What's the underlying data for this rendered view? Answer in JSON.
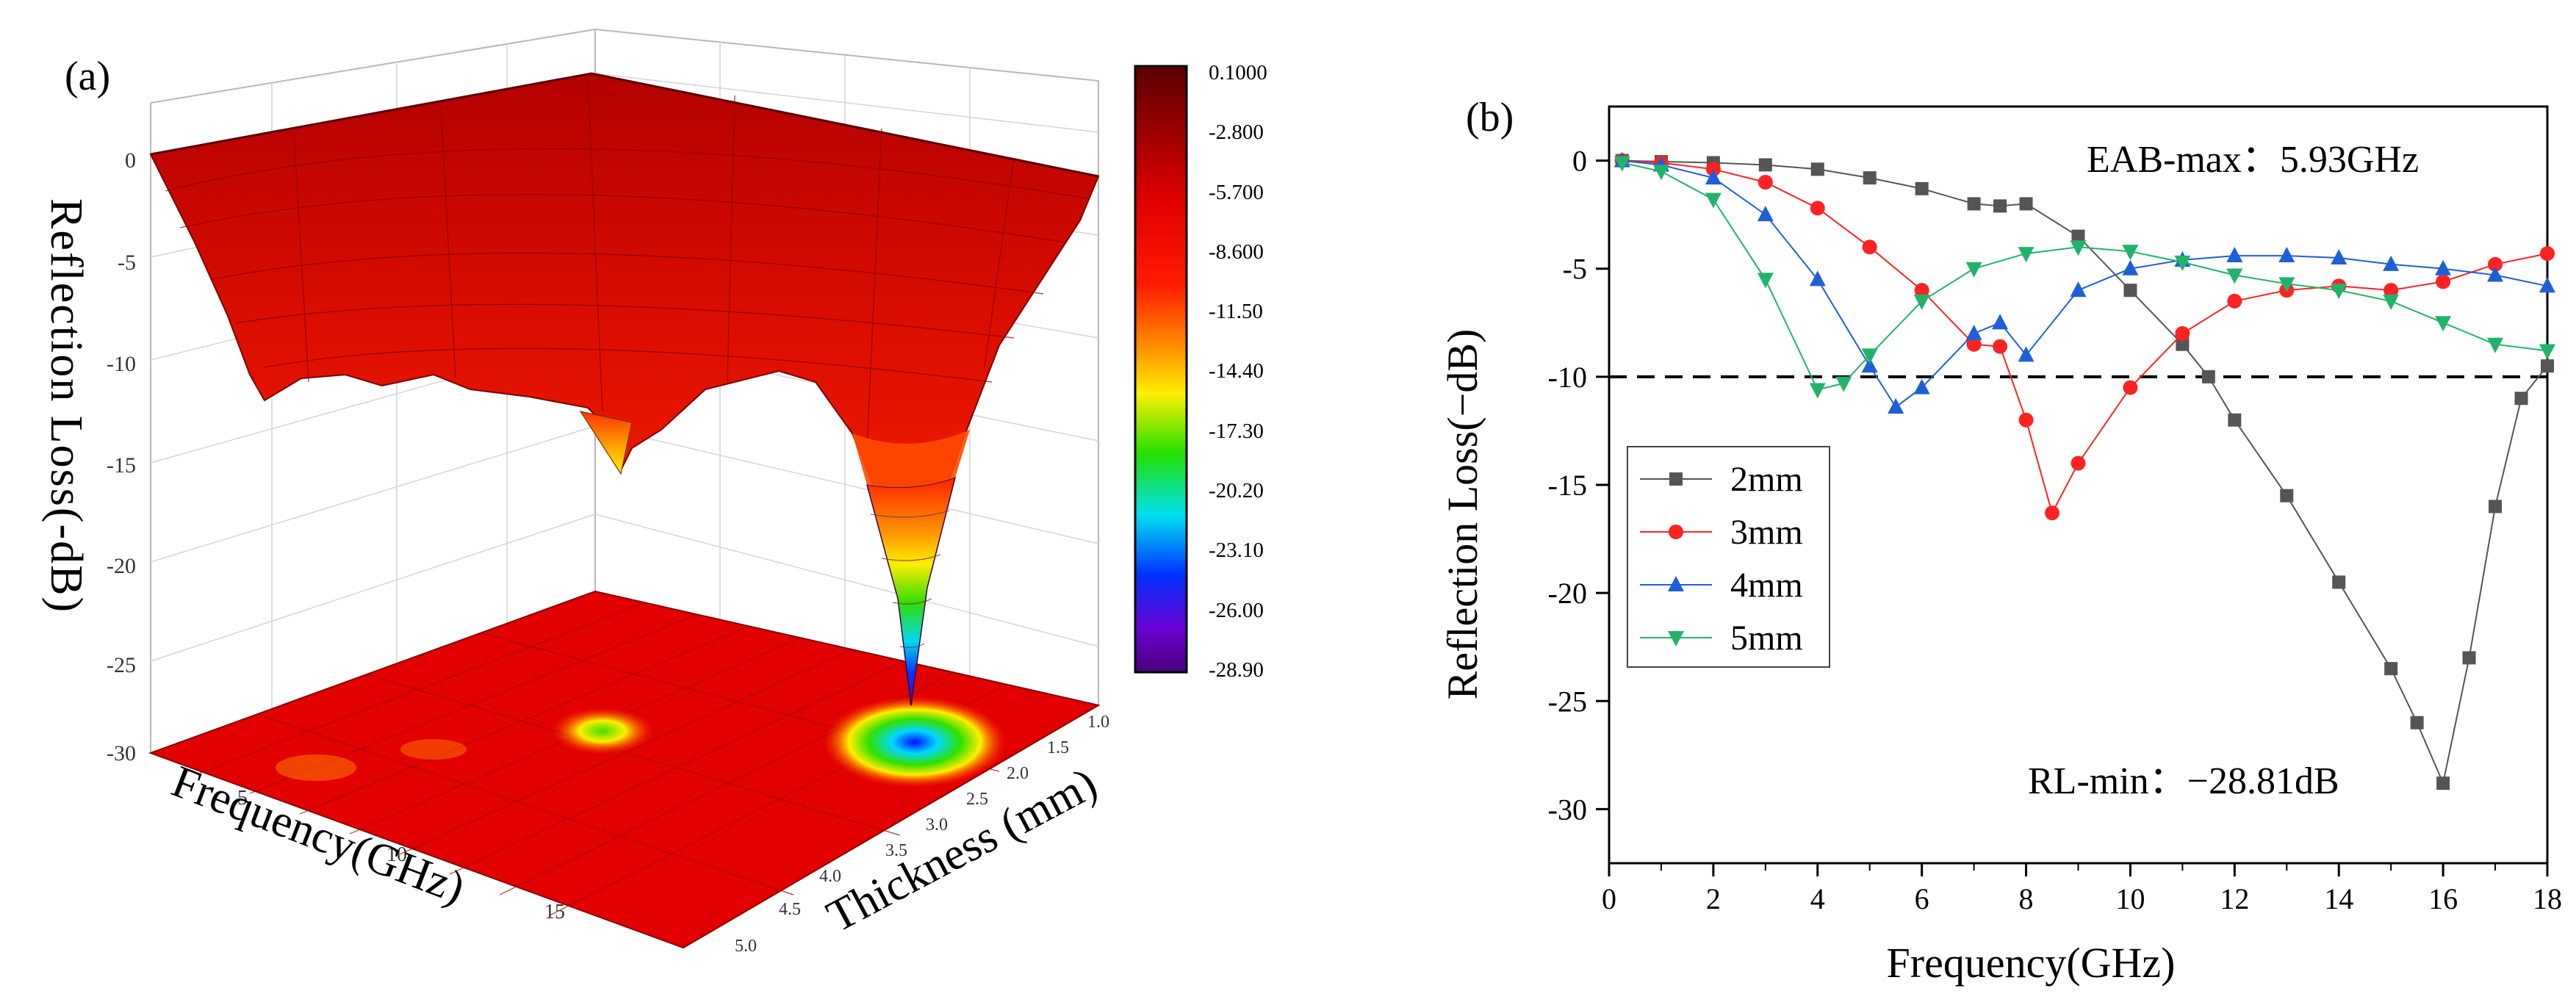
{
  "panel_a": {
    "label": "(a)",
    "z_label": "Reflection Loss(-dB)",
    "x_label": "Frequency(GHz)",
    "y_label": "Thickness (mm)",
    "z_ticks": [
      "0",
      "-5",
      "-10",
      "-15",
      "-20",
      "-25",
      "-30"
    ],
    "freq_ticks": [
      "5",
      "10",
      "15"
    ],
    "thickness_ticks": [
      "1.0",
      "1.5",
      "2.0",
      "2.5",
      "3.0",
      "3.5",
      "4.0",
      "4.5",
      "5.0"
    ],
    "colorbar_levels": [
      "0.1000",
      "-2.800",
      "-5.700",
      "-8.600",
      "-11.50",
      "-14.40",
      "-17.30",
      "-20.20",
      "-23.10",
      "-26.00",
      "-28.90"
    ],
    "colors": {
      "c_max": "#5a0000",
      "c_dark": "#8b0000",
      "c_red": "#e00000",
      "c_bright": "#ff1a00",
      "c_orange": "#ff8a00",
      "c_yellow": "#ffee00",
      "c_green": "#22e000",
      "c_cyan": "#00e0f0",
      "c_blue": "#0030ff",
      "c_violet": "#6a00d0",
      "c_min": "#4a007a"
    }
  },
  "chart_data": [
    {
      "type": "surface",
      "title": "(a)",
      "xlabel": "Frequency(GHz)",
      "ylabel": "Thickness (mm)",
      "zlabel": "Reflection Loss(-dB)",
      "x_range": [
        0,
        18
      ],
      "y_range": [
        1.0,
        5.0
      ],
      "z_range": [
        -30,
        0
      ],
      "min_point": {
        "frequency_ghz": 16.0,
        "thickness_mm": 2.0,
        "rl_db": -28.81
      }
    },
    {
      "type": "line",
      "title": "(b)",
      "xlabel": "Frequency(GHz)",
      "ylabel": "Reflection Loss(−dB)",
      "xlim": [
        0,
        18
      ],
      "ylim": [
        -32.5,
        2.5
      ],
      "x_ticks": [
        "0",
        "2",
        "4",
        "6",
        "8",
        "10",
        "12",
        "14",
        "16",
        "18"
      ],
      "y_ticks": [
        "0",
        "-5",
        "-10",
        "-15",
        "-20",
        "-25",
        "-30"
      ],
      "reference_line": -10,
      "annotations": {
        "eab": "EAB-max：5.93GHz",
        "rlmin": "RL-min：−28.81dB"
      },
      "series": [
        {
          "name": "2mm",
          "color": "#555555",
          "marker": "square",
          "x": [
            0.25,
            1,
            2,
            3,
            4,
            5,
            6,
            7,
            7.5,
            8,
            9,
            10,
            11,
            11.5,
            12,
            13,
            14,
            15,
            15.5,
            16,
            16.5,
            17,
            17.5,
            18
          ],
          "values": [
            0,
            -0.05,
            -0.1,
            -0.2,
            -0.4,
            -0.8,
            -1.3,
            -2,
            -2.1,
            -2,
            -3.5,
            -6,
            -8.5,
            -10,
            -12,
            -15.5,
            -19.5,
            -23.5,
            -26,
            -28.8,
            -23,
            -16,
            -11,
            -9.5
          ]
        },
        {
          "name": "3mm",
          "color": "#ff2222",
          "marker": "circle",
          "x": [
            0.25,
            1,
            2,
            3,
            4,
            5,
            6,
            7,
            7.5,
            8,
            8.5,
            9,
            10,
            11,
            12,
            13,
            14,
            15,
            16,
            17,
            18
          ],
          "values": [
            0,
            -0.1,
            -0.4,
            -1,
            -2.2,
            -4,
            -6,
            -8.5,
            -8.6,
            -12,
            -16.3,
            -14,
            -10.5,
            -8,
            -6.5,
            -6,
            -5.8,
            -6,
            -5.6,
            -4.8,
            -4.3
          ]
        },
        {
          "name": "4mm",
          "color": "#1e5fd8",
          "marker": "triangle-up",
          "x": [
            0.25,
            1,
            2,
            3,
            4,
            5,
            5.5,
            6,
            7,
            7.5,
            8,
            9,
            10,
            11,
            12,
            13,
            14,
            15,
            16,
            17,
            18
          ],
          "values": [
            0,
            -0.2,
            -0.8,
            -2.5,
            -5.5,
            -9.5,
            -11.4,
            -10.5,
            -8,
            -7.5,
            -9,
            -6,
            -5,
            -4.6,
            -4.4,
            -4.4,
            -4.5,
            -4.8,
            -5,
            -5.3,
            -5.8
          ]
        },
        {
          "name": "5mm",
          "color": "#22b36b",
          "marker": "triangle-down",
          "x": [
            0.25,
            1,
            2,
            3,
            4,
            4.5,
            5,
            6,
            7,
            8,
            9,
            10,
            11,
            12,
            13,
            14,
            15,
            16,
            17,
            18
          ],
          "values": [
            -0.1,
            -0.5,
            -1.8,
            -5.5,
            -10.6,
            -10.3,
            -9,
            -6.5,
            -5,
            -4.3,
            -4,
            -4.2,
            -4.7,
            -5.3,
            -5.7,
            -6,
            -6.5,
            -7.5,
            -8.5,
            -8.8
          ]
        }
      ]
    }
  ]
}
